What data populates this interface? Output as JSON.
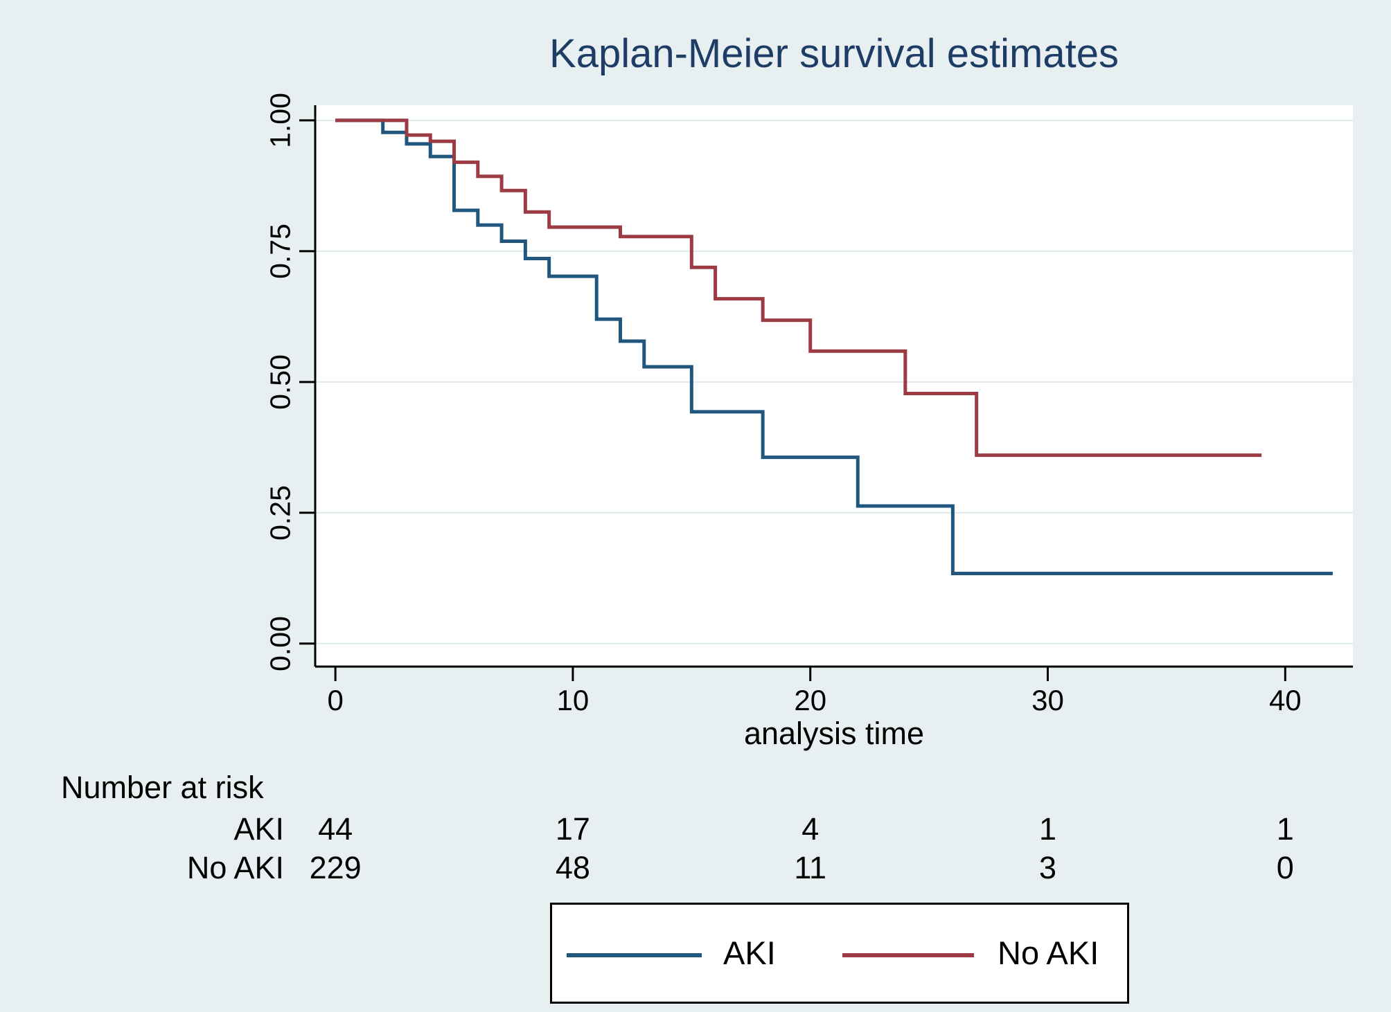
{
  "title": "Kaplan-Meier survival estimates",
  "colors": {
    "background": "#e8eff1",
    "plot_background": "#ffffff",
    "gridline": "#dfeaee",
    "axis": "#000000",
    "title_text": "#1e3d66",
    "aki_line": "#21567f",
    "no_aki_line": "#9c3b43"
  },
  "chart_data": {
    "type": "line",
    "subtype": "kaplan-meier-step",
    "title": "Kaplan-Meier survival estimates",
    "xlabel": "analysis time",
    "ylabel": "",
    "grid": true,
    "legend_position": "bottom",
    "xlim": [
      -0.85,
      42.85
    ],
    "ylim": [
      -0.044,
      1.029
    ],
    "x_ticks": [
      0,
      10,
      20,
      30,
      40
    ],
    "y_ticks": [
      {
        "value": 0.0,
        "label": "0.00"
      },
      {
        "value": 0.25,
        "label": "0.25"
      },
      {
        "value": 0.5,
        "label": "0.50"
      },
      {
        "value": 0.75,
        "label": "0.75"
      },
      {
        "value": 1.0,
        "label": "1.00"
      }
    ],
    "series": [
      {
        "name": "AKI",
        "color": "#21567f",
        "steps": [
          [
            0,
            1.0
          ],
          [
            2,
            0.977
          ],
          [
            3,
            0.955
          ],
          [
            4,
            0.931
          ],
          [
            5,
            0.828
          ],
          [
            6,
            0.8
          ],
          [
            7,
            0.769
          ],
          [
            8,
            0.736
          ],
          [
            9,
            0.702
          ],
          [
            11,
            0.62
          ],
          [
            12,
            0.578
          ],
          [
            13,
            0.529
          ],
          [
            15,
            0.443
          ],
          [
            18,
            0.356
          ],
          [
            22,
            0.263
          ],
          [
            26,
            0.134
          ]
        ],
        "end_t": 42
      },
      {
        "name": "No AKI",
        "color": "#9c3b43",
        "steps": [
          [
            0,
            1.0
          ],
          [
            3,
            0.972
          ],
          [
            4,
            0.96
          ],
          [
            5,
            0.92
          ],
          [
            6,
            0.893
          ],
          [
            7,
            0.866
          ],
          [
            8,
            0.825
          ],
          [
            9,
            0.796
          ],
          [
            12,
            0.778
          ],
          [
            15,
            0.719
          ],
          [
            16,
            0.659
          ],
          [
            18,
            0.618
          ],
          [
            20,
            0.559
          ],
          [
            24,
            0.478
          ],
          [
            27,
            0.36
          ]
        ],
        "end_t": 39
      }
    ]
  },
  "risk_table": {
    "header": "Number at risk",
    "times": [
      0,
      10,
      20,
      30,
      40
    ],
    "rows": [
      {
        "label": "AKI",
        "values": [
          "44",
          "17",
          "4",
          "1",
          "1"
        ]
      },
      {
        "label": "No AKI",
        "values": [
          "229",
          "48",
          "11",
          "3",
          "0"
        ]
      }
    ]
  },
  "legend": {
    "items": [
      {
        "label": "AKI",
        "color": "#21567f"
      },
      {
        "label": "No AKI",
        "color": "#9c3b43"
      }
    ]
  }
}
